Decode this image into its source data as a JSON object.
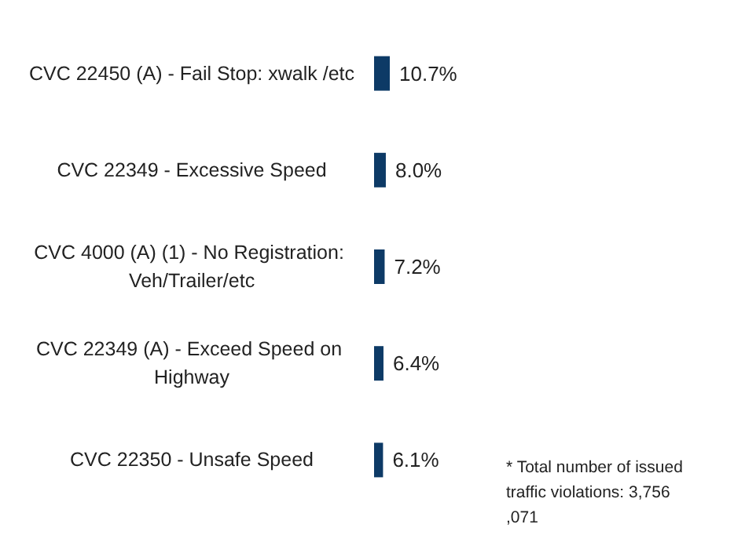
{
  "chart_data": {
    "type": "bar",
    "orientation": "horizontal",
    "categories": [
      "CVC 22450 (A) - Fail Stop: xwalk /etc",
      "CVC 22349 - Excessive Speed",
      "CVC 4000 (A) (1) - No Registration: Veh/Trailer/etc",
      "CVC 22349 (A) - Exceed Speed on Highway",
      "CVC 22350 - Unsafe Speed"
    ],
    "values": [
      10.7,
      8.0,
      7.2,
      6.4,
      6.1
    ],
    "value_labels": [
      "10.7%",
      "8.0%",
      "7.2%",
      "6.4%",
      "6.1%"
    ],
    "color": "#0d3a66",
    "annotations": [
      "* Total number of issued traffic violations: 3,756,071"
    ]
  }
}
